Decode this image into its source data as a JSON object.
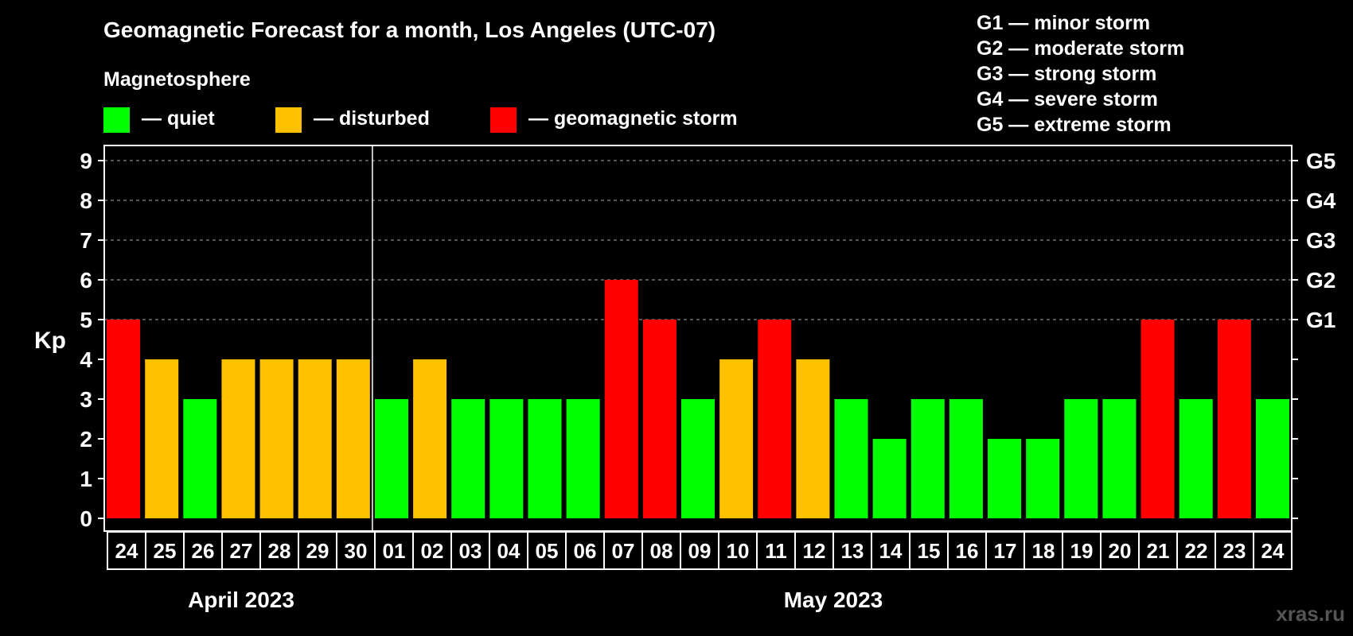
{
  "colors": {
    "background": "#000000",
    "quiet": "#00ff00",
    "disturbed": "#ffc000",
    "storm": "#ff0000",
    "axis": "#ffffff",
    "grid": "#888888",
    "watermark": "#555555"
  },
  "header": {
    "title": "Geomagnetic Forecast for a month, Los Angeles (UTC-07)",
    "section": "Magnetosphere",
    "watermark": "xras.ru"
  },
  "legend": [
    {
      "label": "— quiet",
      "color": "#00ff00"
    },
    {
      "label": "— disturbed",
      "color": "#ffc000"
    },
    {
      "label": "— geomagnetic storm",
      "color": "#ff0000"
    }
  ],
  "storm_scale": [
    "G1 — minor storm",
    "G2 — moderate storm",
    "G3 — strong storm",
    "G4 — severe storm",
    "G5 — extreme storm"
  ],
  "chart_data": {
    "type": "bar",
    "ylabel": "Kp",
    "ylim": [
      0,
      9
    ],
    "yticks": [
      "0",
      "1",
      "2",
      "3",
      "4",
      "5",
      "6",
      "7",
      "8",
      "9"
    ],
    "right_axis_labels": [
      {
        "kp": 5,
        "label": "G1"
      },
      {
        "kp": 6,
        "label": "G2"
      },
      {
        "kp": 7,
        "label": "G3"
      },
      {
        "kp": 8,
        "label": "G4"
      },
      {
        "kp": 9,
        "label": "G5"
      }
    ],
    "grid": "dashed horizontal at Kp 5-9",
    "categories": [
      "24",
      "25",
      "26",
      "27",
      "28",
      "29",
      "30",
      "01",
      "02",
      "03",
      "04",
      "05",
      "06",
      "07",
      "08",
      "09",
      "10",
      "11",
      "12",
      "13",
      "14",
      "15",
      "16",
      "17",
      "18",
      "19",
      "20",
      "21",
      "22",
      "23",
      "24"
    ],
    "values": [
      5,
      4,
      3,
      4,
      4,
      4,
      4,
      3,
      4,
      3,
      3,
      3,
      3,
      6,
      5,
      3,
      4,
      5,
      4,
      3,
      2,
      3,
      3,
      2,
      2,
      3,
      3,
      5,
      3,
      5,
      3
    ],
    "levels": [
      "storm",
      "disturbed",
      "quiet",
      "disturbed",
      "disturbed",
      "disturbed",
      "disturbed",
      "quiet",
      "disturbed",
      "quiet",
      "quiet",
      "quiet",
      "quiet",
      "storm",
      "storm",
      "quiet",
      "disturbed",
      "storm",
      "disturbed",
      "quiet",
      "quiet",
      "quiet",
      "quiet",
      "quiet",
      "quiet",
      "quiet",
      "quiet",
      "storm",
      "quiet",
      "storm",
      "quiet"
    ],
    "months": [
      {
        "label": "April 2023",
        "start": 0,
        "end": 6
      },
      {
        "label": "May 2023",
        "start": 7,
        "end": 30
      }
    ]
  }
}
